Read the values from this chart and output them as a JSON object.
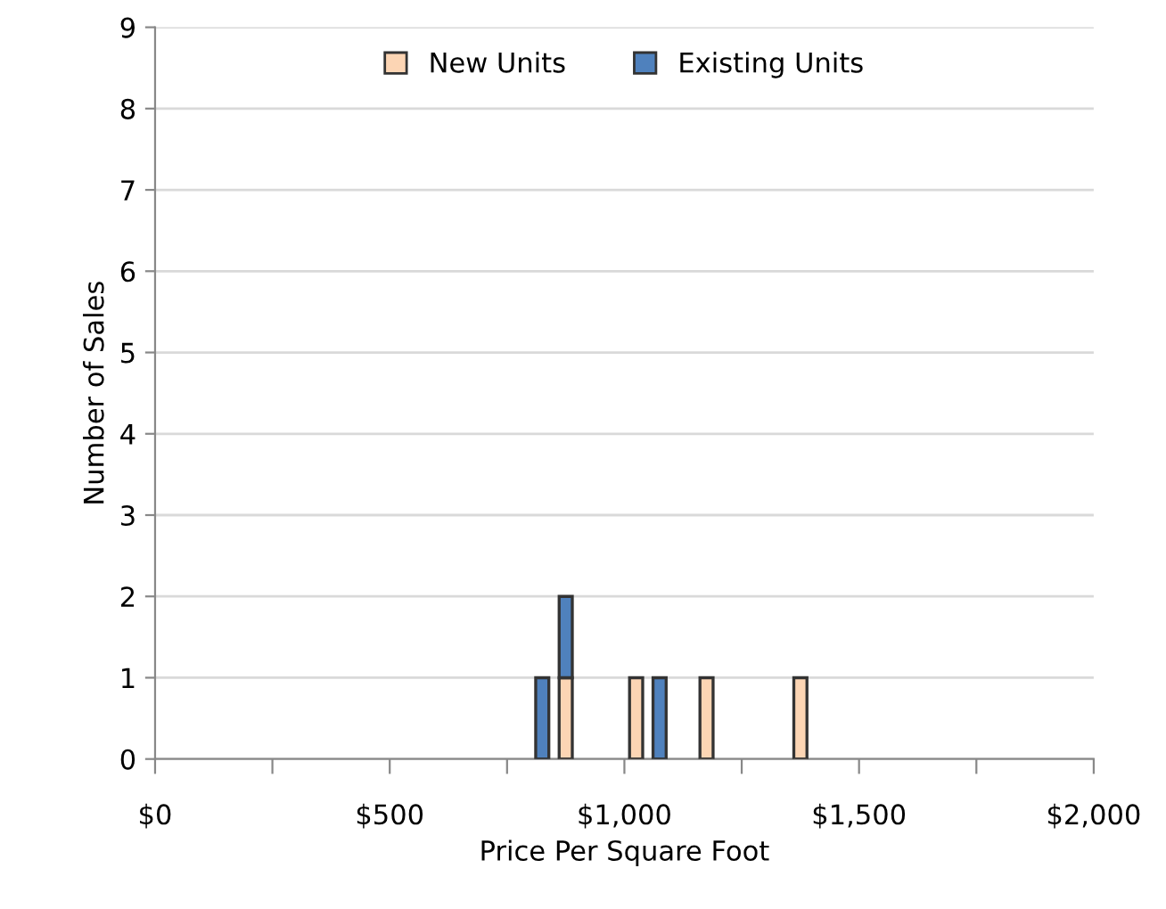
{
  "chart_data": {
    "type": "bar",
    "stacked": true,
    "xlabel": "Price Per Square Foot",
    "ylabel": "Number of Sales",
    "x": [
      825,
      875,
      1025,
      1075,
      1175,
      1375
    ],
    "series": [
      {
        "name": "New Units",
        "color": "#fcd5b4",
        "values": [
          null,
          1,
          1,
          null,
          1,
          1
        ]
      },
      {
        "name": "Existing Units",
        "color": "#4f81bd",
        "values": [
          1,
          1,
          null,
          1,
          null,
          null
        ]
      }
    ],
    "xlim": [
      0,
      2000
    ],
    "xticks": [
      {
        "value": 0,
        "label": "$0"
      },
      {
        "value": 250,
        "label": null
      },
      {
        "value": 500,
        "label": "$500"
      },
      {
        "value": 750,
        "label": null
      },
      {
        "value": 1000,
        "label": "$1,000"
      },
      {
        "value": 1250,
        "label": null
      },
      {
        "value": 1500,
        "label": "$1,500"
      },
      {
        "value": 1750,
        "label": null
      },
      {
        "value": 2000,
        "label": "$2,000"
      }
    ],
    "ylim": [
      0,
      9
    ],
    "yticks": [
      0,
      1,
      2,
      3,
      4,
      5,
      6,
      7,
      8,
      9
    ],
    "grid": "y",
    "legend": "top"
  }
}
